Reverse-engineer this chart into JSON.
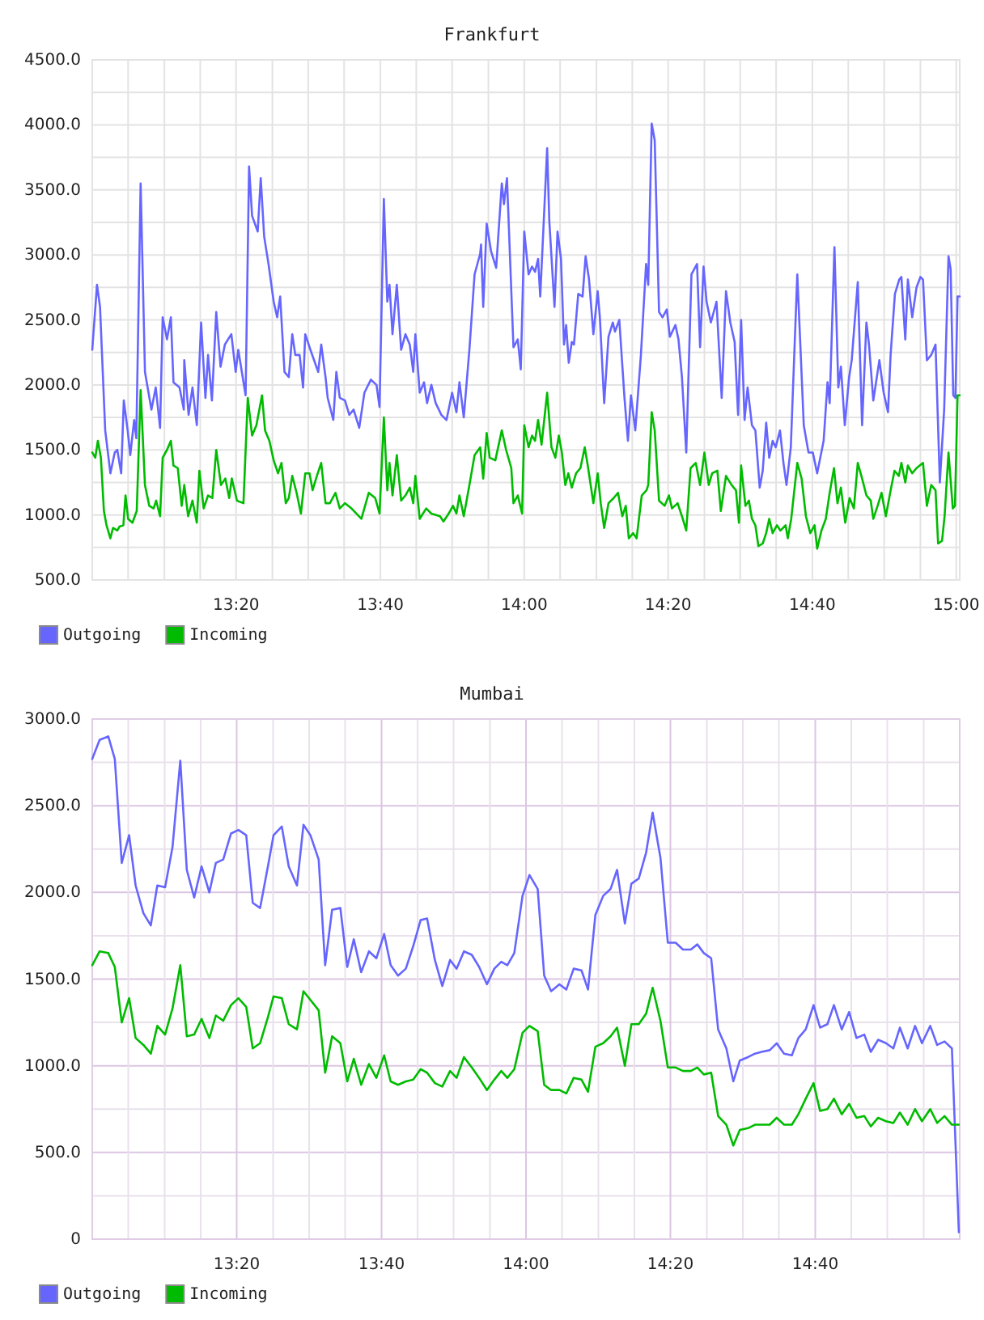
{
  "chart_data": [
    {
      "type": "line",
      "title": "Frankfurt",
      "xlim": [
        13,
        15.008
      ],
      "xticks": [
        {
          "value": 13.083,
          "label": null
        },
        {
          "value": 13.167,
          "label": null
        },
        {
          "value": 13.25,
          "label": null
        },
        {
          "value": 13.333,
          "label": "13:20"
        },
        {
          "value": 13.417,
          "label": null
        },
        {
          "value": 13.5,
          "label": null
        },
        {
          "value": 13.583,
          "label": null
        },
        {
          "value": 13.667,
          "label": "13:40"
        },
        {
          "value": 13.75,
          "label": null
        },
        {
          "value": 13.833,
          "label": null
        },
        {
          "value": 13.917,
          "label": null
        },
        {
          "value": 14,
          "label": "14:00"
        },
        {
          "value": 14.083,
          "label": null
        },
        {
          "value": 14.167,
          "label": null
        },
        {
          "value": 14.25,
          "label": null
        },
        {
          "value": 14.333,
          "label": "14:20"
        },
        {
          "value": 14.417,
          "label": null
        },
        {
          "value": 14.5,
          "label": null
        },
        {
          "value": 14.583,
          "label": null
        },
        {
          "value": 14.667,
          "label": "14:40"
        },
        {
          "value": 14.75,
          "label": null
        },
        {
          "value": 14.833,
          "label": null
        },
        {
          "value": 14.917,
          "label": null
        },
        {
          "value": 15,
          "label": "15:00"
        }
      ],
      "ylim": [
        500,
        4500
      ],
      "yticks": [
        {
          "value": 500,
          "label": "500.0"
        },
        {
          "value": 750,
          "label": null
        },
        {
          "value": 1000,
          "label": "1000.0"
        },
        {
          "value": 1250,
          "label": null
        },
        {
          "value": 1500,
          "label": "1500.0"
        },
        {
          "value": 1750,
          "label": null
        },
        {
          "value": 2000,
          "label": "2000.0"
        },
        {
          "value": 2250,
          "label": null
        },
        {
          "value": 2500,
          "label": "2500.0"
        },
        {
          "value": 2750,
          "label": null
        },
        {
          "value": 3000,
          "label": "3000.0"
        },
        {
          "value": 3250,
          "label": null
        },
        {
          "value": 3500,
          "label": "3500.0"
        },
        {
          "value": 3750,
          "label": null
        },
        {
          "value": 4000,
          "label": "4000.0"
        },
        {
          "value": 4250,
          "label": null
        },
        {
          "value": 4500,
          "label": "4500.0"
        }
      ],
      "grid": true,
      "legend": "bottom left",
      "series": [
        {
          "name": "Outgoing",
          "color": "#6666ff",
          "x": [
            13.0,
            13.011,
            13.018,
            13.03,
            13.042,
            13.052,
            13.058,
            13.067,
            13.073,
            13.082,
            13.088,
            13.097,
            13.102,
            13.112,
            13.122,
            13.137,
            13.147,
            13.157,
            13.163,
            13.173,
            13.182,
            13.188,
            13.202,
            13.212,
            13.213,
            13.223,
            13.232,
            13.242,
            13.252,
            13.262,
            13.268,
            13.277,
            13.287,
            13.297,
            13.307,
            13.322,
            13.332,
            13.338,
            13.355,
            13.363,
            13.37,
            13.383,
            13.39,
            13.398,
            13.408,
            13.42,
            13.428,
            13.435,
            13.445,
            13.455,
            13.463,
            13.47,
            13.48,
            13.488,
            13.493,
            13.505,
            13.523,
            13.53,
            13.54,
            13.545,
            13.558,
            13.565,
            13.573,
            13.585,
            13.595,
            13.605,
            13.618,
            13.63,
            13.645,
            13.658,
            13.665,
            13.675,
            13.683,
            13.688,
            13.695,
            13.705,
            13.715,
            13.725,
            13.735,
            13.743,
            13.748,
            13.758,
            13.768,
            13.775,
            13.785,
            13.795,
            13.808,
            13.82,
            13.833,
            13.843,
            13.85,
            13.86,
            13.873,
            13.885,
            13.898,
            13.9,
            13.905,
            13.913,
            13.923,
            13.935,
            13.948,
            13.953,
            13.96,
            13.975,
            13.985,
            13.992,
            14.0,
            14.01,
            14.018,
            14.025,
            14.032,
            14.037,
            14.053,
            14.058,
            14.07,
            14.077,
            14.085,
            14.092,
            14.097,
            14.103,
            14.11,
            14.115,
            14.125,
            14.135,
            14.142,
            14.15,
            14.16,
            14.17,
            14.175,
            14.185,
            14.195,
            14.205,
            14.21,
            14.22,
            14.228,
            14.232,
            14.24,
            14.247,
            14.257,
            14.27,
            14.282,
            14.287,
            14.295,
            14.302,
            14.312,
            14.32,
            14.33,
            14.337,
            14.35,
            14.357,
            14.365,
            14.375,
            14.387,
            14.4,
            14.407,
            14.415,
            14.422,
            14.432,
            14.445,
            14.457,
            14.467,
            14.477,
            14.487,
            14.495,
            14.502,
            14.51,
            14.517,
            14.527,
            14.535,
            14.545,
            14.552,
            14.56,
            14.567,
            14.575,
            14.582,
            14.592,
            14.6,
            14.607,
            14.617,
            14.632,
            14.638,
            14.647,
            14.658,
            14.668,
            14.678,
            14.693,
            14.702,
            14.707,
            14.718,
            14.727,
            14.733,
            14.742,
            14.752,
            14.758,
            14.772,
            14.782,
            14.792,
            14.798,
            14.808,
            14.822,
            14.832,
            14.842,
            14.848,
            14.858,
            14.868,
            14.873,
            14.882,
            14.888,
            14.898,
            14.908,
            14.917,
            14.923,
            14.932,
            14.942,
            14.952,
            14.962,
            14.972,
            14.982,
            14.987,
            14.993,
            14.998,
            15.003,
            15.008
          ],
          "values": [
            2270,
            2770,
            2600,
            1650,
            1320,
            1480,
            1500,
            1320,
            1880,
            1650,
            1460,
            1730,
            1590,
            3550,
            2100,
            1810,
            1980,
            1670,
            2520,
            2350,
            2520,
            2020,
            1980,
            1810,
            2190,
            1770,
            1980,
            1690,
            2480,
            1900,
            2230,
            1880,
            2560,
            2140,
            2310,
            2390,
            2100,
            2270,
            1920,
            3680,
            3300,
            3180,
            3590,
            3140,
            2930,
            2640,
            2520,
            2680,
            2100,
            2060,
            2390,
            2230,
            2230,
            1980,
            2390,
            2270,
            2100,
            2310,
            2060,
            1900,
            1730,
            2100,
            1900,
            1880,
            1770,
            1810,
            1670,
            1940,
            2040,
            2000,
            1830,
            3430,
            2640,
            2770,
            2390,
            2770,
            2270,
            2390,
            2310,
            2100,
            2390,
            1940,
            2020,
            1860,
            2000,
            1860,
            1770,
            1730,
            1940,
            1790,
            2020,
            1750,
            2270,
            2850,
            3010,
            3080,
            2600,
            3240,
            3030,
            2900,
            3550,
            3390,
            3590,
            2290,
            2350,
            2120,
            3180,
            2850,
            2910,
            2870,
            2970,
            2680,
            3820,
            3260,
            2600,
            3180,
            2970,
            2310,
            2460,
            2170,
            2330,
            2310,
            2700,
            2680,
            2990,
            2810,
            2390,
            2720,
            2520,
            1860,
            2370,
            2480,
            2410,
            2500,
            2100,
            1900,
            1570,
            1920,
            1650,
            2230,
            2930,
            2770,
            4010,
            3880,
            2560,
            2520,
            2580,
            2370,
            2460,
            2350,
            2060,
            1480,
            2850,
            2930,
            2290,
            2910,
            2640,
            2480,
            2640,
            1900,
            2720,
            2480,
            2330,
            1770,
            2500,
            1730,
            1980,
            1690,
            1650,
            1210,
            1340,
            1710,
            1440,
            1570,
            1520,
            1650,
            1400,
            1230,
            1520,
            2850,
            2390,
            1690,
            1480,
            1480,
            1320,
            1570,
            2020,
            1860,
            3060,
            1980,
            2140,
            1690,
            2060,
            2190,
            2790,
            1690,
            2480,
            2310,
            1880,
            2190,
            1940,
            1790,
            2230,
            2700,
            2810,
            2830,
            2350,
            2810,
            2520,
            2750,
            2830,
            2810,
            2190,
            2230,
            2310,
            1250,
            1810,
            2990,
            2890,
            1920,
            1900,
            2680,
            2680
          ]
        },
        {
          "name": "Incoming",
          "color": "#00bb00",
          "x": [
            13.0,
            13.007,
            13.013,
            13.02,
            13.027,
            13.033,
            13.042,
            13.048,
            13.058,
            13.063,
            13.072,
            13.077,
            13.083,
            13.093,
            13.103,
            13.112,
            13.122,
            13.132,
            13.142,
            13.148,
            13.157,
            13.163,
            13.173,
            13.182,
            13.188,
            13.198,
            13.207,
            13.213,
            13.222,
            13.232,
            13.242,
            13.248,
            13.258,
            13.268,
            13.278,
            13.287,
            13.298,
            13.308,
            13.317,
            13.323,
            13.335,
            13.35,
            13.36,
            13.37,
            13.38,
            13.393,
            13.4,
            13.41,
            13.42,
            13.43,
            13.438,
            13.448,
            13.455,
            13.463,
            13.473,
            13.483,
            13.493,
            13.503,
            13.51,
            13.52,
            13.53,
            13.54,
            13.55,
            13.563,
            13.573,
            13.585,
            13.6,
            13.623,
            13.64,
            13.655,
            13.665,
            13.675,
            13.683,
            13.688,
            13.695,
            13.705,
            13.715,
            13.725,
            13.735,
            13.743,
            13.748,
            13.758,
            13.773,
            13.785,
            13.805,
            13.813,
            13.825,
            13.835,
            13.843,
            13.85,
            13.86,
            13.873,
            13.885,
            13.898,
            13.905,
            13.913,
            13.92,
            13.933,
            13.948,
            13.958,
            13.97,
            13.975,
            13.985,
            13.995,
            14.0,
            14.01,
            14.018,
            14.025,
            14.032,
            14.04,
            14.053,
            14.063,
            14.072,
            14.08,
            14.087,
            14.095,
            14.102,
            14.11,
            14.12,
            14.13,
            14.14,
            14.147,
            14.16,
            14.17,
            14.177,
            14.185,
            14.195,
            14.207,
            14.217,
            14.227,
            14.235,
            14.242,
            14.252,
            14.26,
            14.272,
            14.283,
            14.287,
            14.295,
            14.302,
            14.312,
            14.325,
            14.335,
            14.342,
            14.355,
            14.365,
            14.375,
            14.385,
            14.397,
            14.407,
            14.417,
            14.427,
            14.435,
            14.447,
            14.455,
            14.467,
            14.48,
            14.49,
            14.497,
            14.502,
            14.512,
            14.52,
            14.527,
            14.535,
            14.542,
            14.552,
            14.56,
            14.567,
            14.575,
            14.585,
            14.593,
            14.605,
            14.61,
            14.618,
            14.632,
            14.642,
            14.652,
            14.662,
            14.672,
            14.678,
            14.688,
            14.698,
            14.707,
            14.717,
            14.725,
            14.733,
            14.743,
            14.753,
            14.763,
            14.772,
            14.782,
            14.792,
            14.802,
            14.808,
            14.818,
            14.827,
            14.837,
            14.847,
            14.857,
            14.867,
            14.873,
            14.882,
            14.888,
            14.898,
            14.908,
            14.923,
            14.932,
            14.942,
            14.952,
            14.958,
            14.967,
            14.973,
            14.982,
            14.992,
            14.997,
            15.003,
            15.008
          ],
          "values": [
            1480,
            1440,
            1570,
            1440,
            1030,
            920,
            820,
            900,
            880,
            910,
            920,
            1150,
            970,
            940,
            1030,
            1960,
            1230,
            1070,
            1050,
            1110,
            990,
            1440,
            1500,
            1570,
            1380,
            1360,
            1070,
            1230,
            990,
            1110,
            940,
            1340,
            1050,
            1150,
            1130,
            1500,
            1230,
            1280,
            1130,
            1280,
            1110,
            1090,
            1900,
            1610,
            1690,
            1920,
            1650,
            1570,
            1420,
            1320,
            1400,
            1090,
            1130,
            1300,
            1170,
            1010,
            1320,
            1320,
            1190,
            1300,
            1400,
            1090,
            1090,
            1170,
            1050,
            1090,
            1050,
            970,
            1170,
            1130,
            1010,
            1750,
            1190,
            1400,
            1150,
            1460,
            1110,
            1150,
            1210,
            1090,
            1300,
            970,
            1050,
            1010,
            990,
            950,
            1010,
            1070,
            1010,
            1150,
            990,
            1230,
            1460,
            1520,
            1280,
            1630,
            1440,
            1420,
            1650,
            1500,
            1360,
            1090,
            1150,
            1010,
            1690,
            1520,
            1610,
            1570,
            1730,
            1540,
            1940,
            1520,
            1440,
            1610,
            1480,
            1230,
            1320,
            1210,
            1320,
            1360,
            1520,
            1380,
            1090,
            1320,
            1090,
            900,
            1090,
            1130,
            1170,
            990,
            1070,
            820,
            860,
            820,
            1150,
            1190,
            1230,
            1790,
            1650,
            1110,
            1070,
            1150,
            1050,
            1090,
            990,
            880,
            1360,
            1400,
            1230,
            1480,
            1230,
            1320,
            1340,
            1030,
            1300,
            1230,
            1190,
            940,
            1380,
            1070,
            1110,
            970,
            920,
            760,
            780,
            860,
            970,
            860,
            920,
            880,
            920,
            820,
            970,
            1400,
            1280,
            990,
            860,
            920,
            740,
            880,
            970,
            1170,
            1360,
            1090,
            1210,
            940,
            1130,
            1050,
            1400,
            1280,
            1150,
            1110,
            970,
            1070,
            1170,
            990,
            1170,
            1340,
            1300,
            1400,
            1250,
            1380,
            1320,
            1360,
            1400,
            1070,
            1230,
            1190,
            780,
            800,
            990,
            1480,
            1050,
            1070,
            1920,
            1920
          ]
        }
      ]
    },
    {
      "type": "line",
      "title": "Mumbai",
      "xlim": [
        13,
        15
      ],
      "xticks": [
        {
          "value": 13.083,
          "label": null
        },
        {
          "value": 13.167,
          "label": null
        },
        {
          "value": 13.25,
          "label": null
        },
        {
          "value": 13.333,
          "label": "13:20"
        },
        {
          "value": 13.417,
          "label": null
        },
        {
          "value": 13.5,
          "label": null
        },
        {
          "value": 13.583,
          "label": null
        },
        {
          "value": 13.667,
          "label": "13:40"
        },
        {
          "value": 13.75,
          "label": null
        },
        {
          "value": 13.833,
          "label": null
        },
        {
          "value": 13.917,
          "label": null
        },
        {
          "value": 14,
          "label": "14:00"
        },
        {
          "value": 14.083,
          "label": null
        },
        {
          "value": 14.167,
          "label": null
        },
        {
          "value": 14.25,
          "label": null
        },
        {
          "value": 14.333,
          "label": "14:20"
        },
        {
          "value": 14.417,
          "label": null
        },
        {
          "value": 14.5,
          "label": null
        },
        {
          "value": 14.583,
          "label": null
        },
        {
          "value": 14.667,
          "label": "14:40"
        },
        {
          "value": 14.75,
          "label": null
        },
        {
          "value": 14.833,
          "label": null
        },
        {
          "value": 14.917,
          "label": null
        }
      ],
      "ylim": [
        0,
        3000
      ],
      "yticks": [
        0,
        {
          "value": 250,
          "label": null
        },
        {
          "value": 500,
          "label": "500.0"
        },
        {
          "value": 750,
          "label": null
        },
        {
          "value": 1000,
          "label": "1000.0"
        },
        {
          "value": 1250,
          "label": null
        },
        {
          "value": 1500,
          "label": "1500.0"
        },
        {
          "value": 1750,
          "label": null
        },
        {
          "value": 2000,
          "label": "2000.0"
        },
        {
          "value": 2250,
          "label": null
        },
        {
          "value": 2500,
          "label": "2500.0"
        },
        {
          "value": 2750,
          "label": null
        },
        {
          "value": 3000,
          "label": "3000.0"
        }
      ],
      "grid": true,
      "legend": "bottom left",
      "x": [
        13.0,
        13.017,
        13.037,
        13.052,
        13.068,
        13.085,
        13.1,
        13.118,
        13.135,
        13.15,
        13.168,
        13.185,
        13.203,
        13.218,
        13.235,
        13.252,
        13.27,
        13.285,
        13.302,
        13.32,
        13.337,
        13.355,
        13.37,
        13.387,
        13.405,
        13.418,
        13.437,
        13.453,
        13.472,
        13.487,
        13.503,
        13.522,
        13.537,
        13.553,
        13.572,
        13.588,
        13.603,
        13.62,
        13.638,
        13.655,
        13.673,
        13.688,
        13.705,
        13.723,
        13.74,
        13.757,
        13.772,
        13.79,
        13.807,
        13.825,
        13.84,
        13.857,
        13.875,
        13.892,
        13.91,
        13.927,
        13.943,
        13.957,
        13.973,
        13.992,
        14.008,
        14.027,
        14.042,
        14.058,
        14.077,
        14.093,
        14.11,
        14.128,
        14.143,
        14.16,
        14.178,
        14.195,
        14.21,
        14.228,
        14.243,
        14.26,
        14.277,
        14.292,
        14.31,
        14.327,
        14.345,
        14.362,
        14.38,
        14.395,
        14.41,
        14.427,
        14.443,
        14.462,
        14.478,
        14.493,
        14.512,
        14.528,
        14.543,
        14.562,
        14.578,
        14.595,
        14.613,
        14.628,
        14.645,
        14.663,
        14.678,
        14.695,
        14.71,
        14.728,
        14.745,
        14.762,
        14.78,
        14.795,
        14.812,
        14.83,
        14.847,
        14.862,
        14.88,
        14.897,
        14.913,
        14.932,
        14.948,
        14.965,
        14.982,
        14.998
      ],
      "series": [
        {
          "name": "Outgoing",
          "color": "#6666ff",
          "values": [
            2770,
            2880,
            2900,
            2770,
            2170,
            2330,
            2040,
            1880,
            1810,
            2040,
            2030,
            2260,
            2760,
            2130,
            1970,
            2150,
            2000,
            2170,
            2190,
            2340,
            2360,
            2330,
            1940,
            1910,
            2150,
            2330,
            2380,
            2150,
            2040,
            2390,
            2330,
            2190,
            1580,
            1900,
            1910,
            1570,
            1730,
            1540,
            1660,
            1620,
            1760,
            1580,
            1520,
            1560,
            1690,
            1840,
            1850,
            1610,
            1460,
            1610,
            1560,
            1660,
            1640,
            1570,
            1470,
            1560,
            1600,
            1580,
            1650,
            1980,
            2100,
            2020,
            1520,
            1430,
            1470,
            1440,
            1560,
            1550,
            1440,
            1870,
            1980,
            2020,
            2130,
            1820,
            2050,
            2080,
            2230,
            2460,
            2200,
            1710,
            1710,
            1670,
            1670,
            1700,
            1650,
            1620,
            1210,
            1100,
            910,
            1030,
            1050,
            1070,
            1080,
            1090,
            1130,
            1070,
            1060,
            1160,
            1210,
            1350,
            1220,
            1240,
            1350,
            1210,
            1310,
            1160,
            1180,
            1080,
            1150,
            1130,
            1100,
            1220,
            1100,
            1230,
            1130,
            1230,
            1120,
            1140,
            1100,
            40
          ]
        },
        {
          "name": "Incoming",
          "color": "#00bb00",
          "values": [
            1580,
            1660,
            1650,
            1570,
            1250,
            1390,
            1160,
            1120,
            1070,
            1230,
            1180,
            1330,
            1580,
            1170,
            1180,
            1270,
            1160,
            1290,
            1260,
            1350,
            1390,
            1340,
            1100,
            1130,
            1280,
            1400,
            1390,
            1240,
            1210,
            1430,
            1380,
            1320,
            960,
            1170,
            1130,
            910,
            1040,
            890,
            1010,
            930,
            1060,
            910,
            890,
            910,
            920,
            980,
            960,
            900,
            880,
            970,
            930,
            1050,
            990,
            930,
            860,
            920,
            970,
            930,
            980,
            1190,
            1230,
            1200,
            890,
            860,
            860,
            840,
            930,
            920,
            850,
            1110,
            1130,
            1170,
            1220,
            1000,
            1240,
            1240,
            1300,
            1450,
            1260,
            990,
            990,
            970,
            970,
            990,
            950,
            960,
            710,
            660,
            540,
            630,
            640,
            660,
            660,
            660,
            700,
            660,
            660,
            720,
            810,
            900,
            740,
            750,
            810,
            720,
            780,
            700,
            710,
            650,
            700,
            680,
            670,
            730,
            660,
            750,
            680,
            750,
            670,
            710,
            660,
            660
          ]
        }
      ]
    }
  ]
}
